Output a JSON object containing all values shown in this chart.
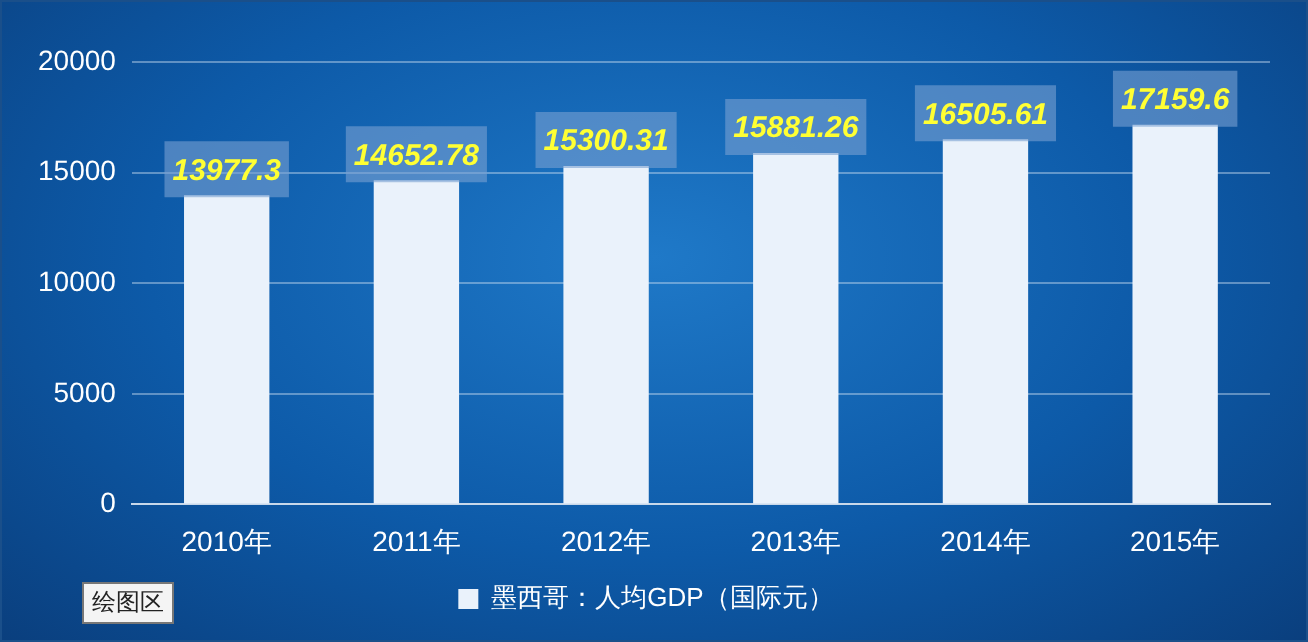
{
  "chart_data": {
    "type": "bar",
    "categories": [
      "2010年",
      "2011年",
      "2012年",
      "2013年",
      "2014年",
      "2015年"
    ],
    "series": [
      {
        "name": "墨西哥：人均GDP（国际元）",
        "color": "#eaf2fb",
        "values": [
          13977.3,
          14652.78,
          15300.31,
          15881.26,
          16505.61,
          17159.6
        ]
      }
    ],
    "ylim": [
      0,
      20000
    ],
    "yticks": [
      0,
      5000,
      10000,
      15000,
      20000
    ],
    "grid": "y",
    "legend": "bottom",
    "data_labels": true,
    "annotations": [
      "绘图区"
    ]
  }
}
